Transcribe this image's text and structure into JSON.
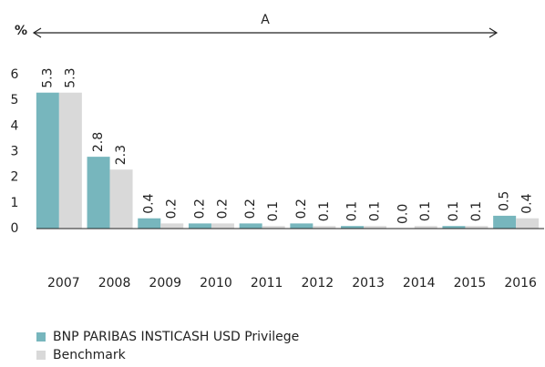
{
  "chart_data": {
    "type": "bar",
    "ylabel": "%",
    "annotation": "A",
    "categories": [
      "2007",
      "2008",
      "2009",
      "2010",
      "2011",
      "2012",
      "2013",
      "2014",
      "2015",
      "2016"
    ],
    "series": [
      {
        "name": "BNP PARIBAS INSTICASH USD Privilege",
        "color": "#77b6bd",
        "values": [
          5.3,
          2.8,
          0.4,
          0.2,
          0.2,
          0.2,
          0.1,
          0.0,
          0.1,
          0.5
        ],
        "value_labels": [
          "5.3",
          "2.8",
          "0.4",
          "0.2",
          "0.2",
          "0.2",
          "0.1",
          "0.0",
          "0.1",
          "0.5"
        ]
      },
      {
        "name": "Benchmark",
        "color": "#d9d9d9",
        "values": [
          5.3,
          2.3,
          0.2,
          0.2,
          0.1,
          0.1,
          0.1,
          0.1,
          0.1,
          0.4
        ],
        "value_labels": [
          "5.3",
          "2.3",
          "0.2",
          "0.2",
          "0.1",
          "0.1",
          "0.1",
          "0.1",
          "0.1",
          "0.4"
        ]
      }
    ],
    "ylim": [
      0,
      6
    ],
    "yticks": [
      0,
      1,
      2,
      3,
      4,
      5,
      6
    ],
    "grid": false,
    "legend": "bottom-left"
  }
}
